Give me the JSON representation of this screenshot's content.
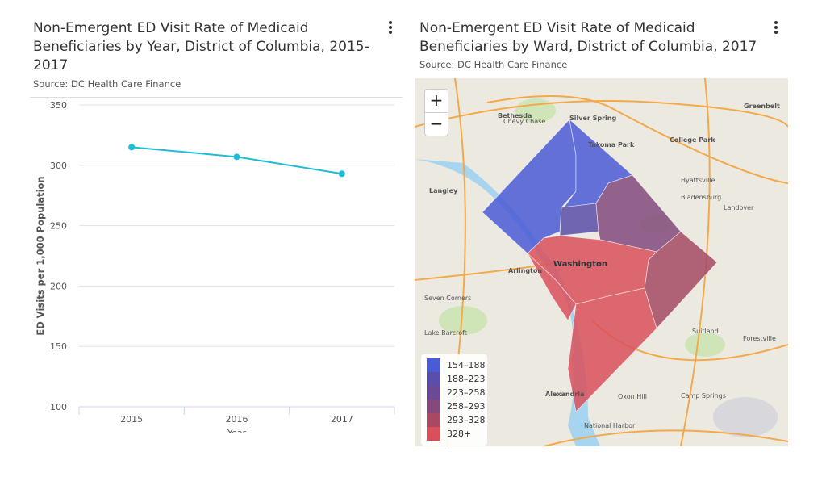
{
  "left_panel": {
    "title": "Non-Emergent ED Visit Rate of Medicaid Beneficiaries by Year, District of Columbia, 2015-2017",
    "title_lines": [
      "Non-Emergent ED Visit Rate of Medicaid",
      "Beneficiaries by Year, District of Columbia, 2015-",
      "2017"
    ],
    "source": "Source: DC Health Care Finance",
    "menu_icon": "kebab-menu-icon"
  },
  "right_panel": {
    "title_lines": [
      "Non-Emergent ED Visit Rate of Medicaid",
      "Beneficiaries by Ward, District of Columbia, 2017"
    ],
    "source": "Source: DC Health Care Finance",
    "menu_icon": "kebab-menu-icon",
    "zoom_in": "+",
    "zoom_out": "−",
    "legend": [
      {
        "label": "154–188",
        "color": "#4a5bd6"
      },
      {
        "label": "188–223",
        "color": "#5a4ea8"
      },
      {
        "label": "223–258",
        "color": "#6b4a95"
      },
      {
        "label": "258–293",
        "color": "#844a7c"
      },
      {
        "label": "293–328",
        "color": "#a54a62"
      },
      {
        "label": "328+",
        "color": "#d9505a"
      }
    ],
    "map_labels": [
      "Silver Spring",
      "Bethesda",
      "Takoma Park",
      "College Park",
      "Greenbelt",
      "Washington",
      "Arlington",
      "Alexandria",
      "Hyattsville",
      "Bladensburg",
      "Landover",
      "Suitland",
      "Forestville",
      "Oxon Hill",
      "National Harbor",
      "Camp Springs",
      "Chevy Chase",
      "Langley",
      "Seven Corners",
      "Lake Barcroft"
    ]
  },
  "chart_data": {
    "type": "line",
    "title": "Non-Emergent ED Visit Rate of Medicaid Beneficiaries by Year, District of Columbia, 2015-2017",
    "xlabel": "Year",
    "ylabel": "ED Visits per 1,000 Population",
    "categories": [
      "2015",
      "2016",
      "2017"
    ],
    "values": [
      315,
      307,
      293
    ],
    "ylim": [
      100,
      350
    ],
    "yticks": [
      "350",
      "300",
      "250",
      "200",
      "150",
      "100"
    ],
    "grid": true,
    "color": "#1fbcd6"
  }
}
